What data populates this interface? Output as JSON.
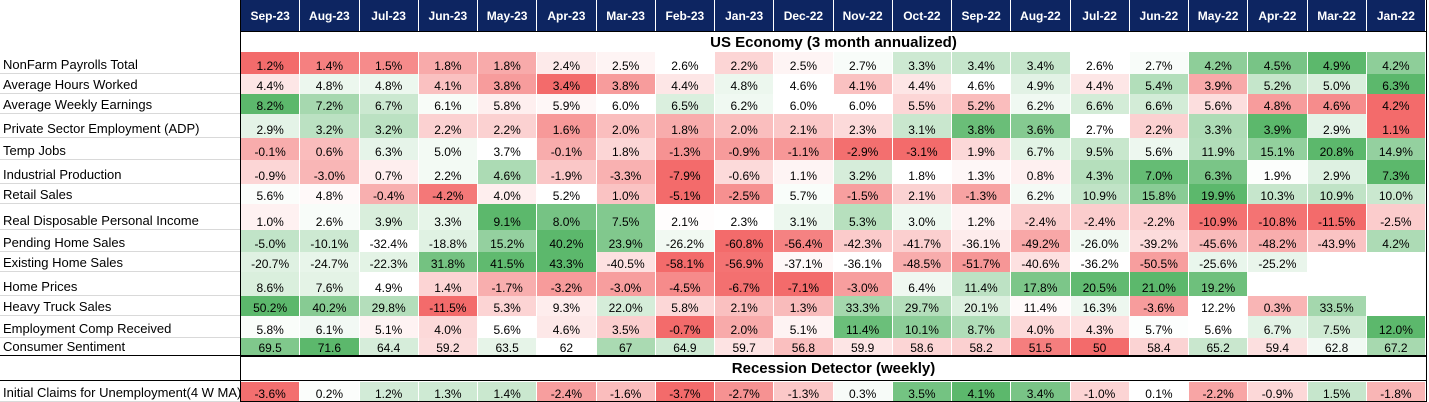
{
  "table": {
    "columns": [
      "Sep-23",
      "Aug-23",
      "Jul-23",
      "Jun-23",
      "May-23",
      "Apr-23",
      "Mar-23",
      "Feb-23",
      "Jan-23",
      "Dec-22",
      "Nov-22",
      "Oct-22",
      "Sep-22",
      "Aug-22",
      "Jul-22",
      "Jun-22",
      "May-22",
      "Apr-22",
      "Mar-22",
      "Jan-22"
    ],
    "section_us_economy": "US Economy (3 month annualized)",
    "section_recession": "Recession Detector (weekly)",
    "rows": [
      {
        "label": "NonFarm Payrolls Total",
        "cells": [
          "1.2%",
          "1.4%",
          "1.5%",
          "1.8%",
          "1.8%",
          "2.4%",
          "2.5%",
          "2.6%",
          "2.2%",
          "2.5%",
          "2.7%",
          "3.3%",
          "3.4%",
          "3.4%",
          "2.6%",
          "2.7%",
          "4.2%",
          "4.5%",
          "4.9%",
          "4.2%"
        ]
      },
      {
        "label": "Average Hours Worked",
        "cells": [
          "4.4%",
          "4.8%",
          "4.8%",
          "4.1%",
          "3.8%",
          "3.4%",
          "3.8%",
          "4.4%",
          "4.8%",
          "4.6%",
          "4.1%",
          "4.4%",
          "4.6%",
          "4.9%",
          "4.4%",
          "5.4%",
          "3.9%",
          "5.2%",
          "5.0%",
          "6.3%"
        ]
      },
      {
        "label": "Average Weekly Earnings",
        "cells": [
          "8.2%",
          "7.2%",
          "6.7%",
          "6.1%",
          "5.8%",
          "5.9%",
          "6.0%",
          "6.5%",
          "6.2%",
          "6.0%",
          "6.0%",
          "5.5%",
          "5.2%",
          "6.2%",
          "6.6%",
          "6.6%",
          "5.6%",
          "4.8%",
          "4.6%",
          "4.2%"
        ]
      },
      {
        "label": "Private Sector Employment (ADP)",
        "cells": [
          "2.9%",
          "3.2%",
          "3.2%",
          "2.2%",
          "2.2%",
          "1.6%",
          "2.0%",
          "1.8%",
          "2.0%",
          "2.1%",
          "2.3%",
          "3.1%",
          "3.8%",
          "3.6%",
          "2.7%",
          "2.2%",
          "3.3%",
          "3.9%",
          "2.9%",
          "1.1%"
        ]
      },
      {
        "label": "Temp Jobs",
        "cells": [
          "-0.1%",
          "0.6%",
          "6.3%",
          "5.0%",
          "3.7%",
          "-0.1%",
          "1.8%",
          "-1.3%",
          "-0.9%",
          "-1.1%",
          "-2.9%",
          "-3.1%",
          "1.9%",
          "6.7%",
          "9.5%",
          "5.6%",
          "11.9%",
          "15.1%",
          "20.8%",
          "14.9%"
        ]
      },
      {
        "label": "Industrial Production",
        "cells": [
          "-0.9%",
          "-3.0%",
          "0.7%",
          "2.2%",
          "4.6%",
          "-1.9%",
          "-3.3%",
          "-7.9%",
          "-0.6%",
          "1.1%",
          "3.2%",
          "1.8%",
          "1.3%",
          "0.8%",
          "4.3%",
          "7.0%",
          "6.3%",
          "1.9%",
          "2.9%",
          "7.3%"
        ]
      },
      {
        "label": "Retail Sales",
        "cells": [
          "5.6%",
          "4.8%",
          "-0.4%",
          "-4.2%",
          "4.0%",
          "5.2%",
          "1.0%",
          "-5.1%",
          "-2.5%",
          "5.7%",
          "-1.5%",
          "2.1%",
          "-1.3%",
          "6.2%",
          "10.9%",
          "15.8%",
          "19.9%",
          "10.3%",
          "10.9%",
          "10.0%"
        ]
      },
      {
        "label": "Real Disposable Personal Income",
        "cells": [
          "1.0%",
          "2.6%",
          "3.9%",
          "3.3%",
          "9.1%",
          "8.0%",
          "7.5%",
          "2.1%",
          "2.3%",
          "3.1%",
          "5.3%",
          "3.0%",
          "1.2%",
          "-2.4%",
          "-2.4%",
          "-2.2%",
          "-10.9%",
          "-10.8%",
          "-11.5%",
          "-2.5%"
        ]
      },
      {
        "label": "Pending Home Sales",
        "cells": [
          "-5.0%",
          "-10.1%",
          "-32.4%",
          "-18.8%",
          "15.2%",
          "40.2%",
          "23.9%",
          "-26.2%",
          "-60.8%",
          "-56.4%",
          "-42.3%",
          "-41.7%",
          "-36.1%",
          "-49.2%",
          "-26.0%",
          "-39.2%",
          "-45.6%",
          "-48.2%",
          "-43.9%",
          "4.2%"
        ]
      },
      {
        "label": "Existing Home Sales",
        "cells": [
          "-20.7%",
          "-24.7%",
          "-22.3%",
          "31.8%",
          "41.5%",
          "43.3%",
          "-40.5%",
          "-58.1%",
          "-56.9%",
          "-37.1%",
          "-36.1%",
          "-48.5%",
          "-51.7%",
          "-40.6%",
          "-36.2%",
          "-50.5%",
          "-25.6%",
          "-25.2%",
          "",
          ""
        ]
      },
      {
        "label": "Home Prices",
        "cells": [
          "8.6%",
          "7.6%",
          "4.9%",
          "1.4%",
          "-1.7%",
          "-3.2%",
          "-3.0%",
          "-4.5%",
          "-6.7%",
          "-7.1%",
          "-3.0%",
          "6.4%",
          "11.4%",
          "17.8%",
          "20.5%",
          "21.0%",
          "19.2%",
          "",
          "",
          ""
        ]
      },
      {
        "label": "Heavy Truck Sales",
        "cells": [
          "50.2%",
          "40.2%",
          "29.8%",
          "-11.5%",
          "5.3%",
          "9.3%",
          "22.0%",
          "5.8%",
          "2.1%",
          "1.3%",
          "33.3%",
          "29.7%",
          "20.1%",
          "11.4%",
          "16.3%",
          "-3.6%",
          "12.2%",
          "0.3%",
          "33.5%",
          ""
        ]
      },
      {
        "label": "Employment Comp Received",
        "cells": [
          "5.8%",
          "6.1%",
          "5.1%",
          "4.0%",
          "5.6%",
          "4.6%",
          "3.5%",
          "-0.7%",
          "2.0%",
          "5.1%",
          "11.4%",
          "10.1%",
          "8.7%",
          "4.0%",
          "4.3%",
          "5.7%",
          "5.6%",
          "6.7%",
          "7.5%",
          "12.0%"
        ]
      },
      {
        "label": "Consumer Sentiment",
        "cells": [
          "69.5",
          "71.6",
          "64.4",
          "59.2",
          "63.5",
          "62",
          "67",
          "64.9",
          "59.7",
          "56.8",
          "59.9",
          "58.6",
          "58.2",
          "51.5",
          "50",
          "58.4",
          "65.2",
          "59.4",
          "62.8",
          "67.2"
        ]
      }
    ],
    "recession_rows": [
      {
        "label": "Initial Claims for Unemployment(4 W MA)",
        "cells": [
          "-3.6%",
          "0.2%",
          "1.2%",
          "1.3%",
          "1.4%",
          "-2.4%",
          "-1.6%",
          "-3.7%",
          "-2.7%",
          "-1.3%",
          "0.3%",
          "3.5%",
          "4.1%",
          "3.4%",
          "-1.0%",
          "0.1%",
          "-2.2%",
          "-0.9%",
          "1.5%",
          "-1.8%"
        ]
      }
    ]
  },
  "colors": {
    "header_bg": "#0d2561",
    "header_text": "#ffffff",
    "green_strong": "#5cb86c",
    "red_strong": "#f36b6b",
    "neutral": "#ffffff"
  }
}
